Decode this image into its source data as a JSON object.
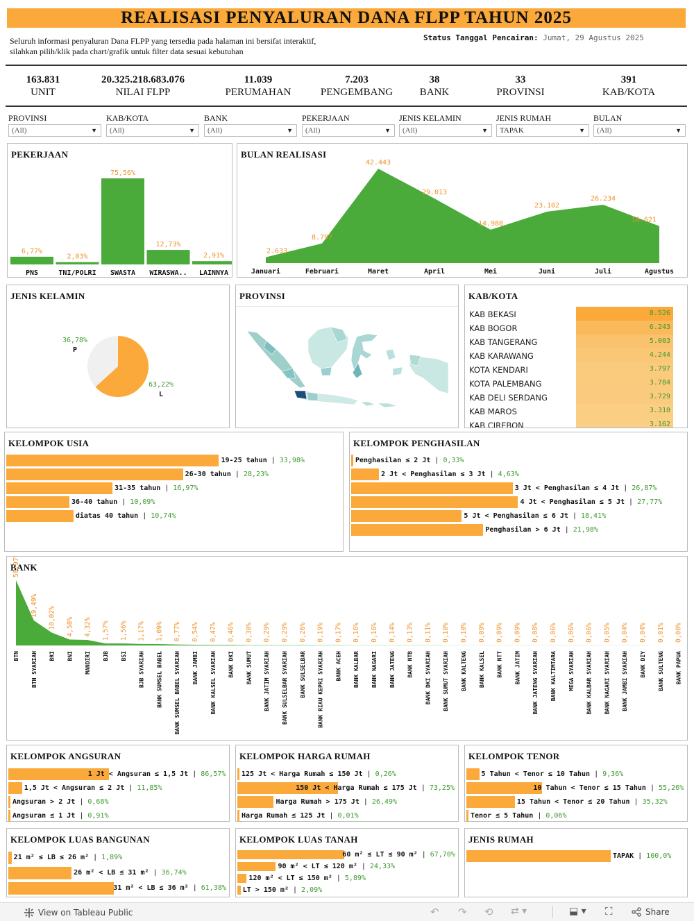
{
  "header": {
    "title": "REALISASI PENYALURAN DANA FLPP TAHUN 2025",
    "intro_line1": "Seluruh informasi penyaluran Dana FLPP yang tersedia pada halaman ini bersifat interaktif,",
    "intro_line2": "silahkan pilih/klik pada chart/grafik untuk filter data sesuai kebutuhan",
    "status_label": "Status Tanggal Pencairan:",
    "status_value": "Jumat, 29 Agustus 2025"
  },
  "kpis": [
    {
      "value": "163.831",
      "label": "UNIT"
    },
    {
      "value": "20.325.218.683.076",
      "label": "NILAI FLPP"
    },
    {
      "value": "11.039",
      "label": "PERUMAHAN"
    },
    {
      "value": "7.203",
      "label": "PENGEMBANG"
    },
    {
      "value": "38",
      "label": "BANK"
    },
    {
      "value": "33",
      "label": "PROVINSI"
    },
    {
      "value": "391",
      "label": "KAB/KOTA"
    }
  ],
  "filters": [
    {
      "label": "PROVINSI",
      "value": "(All)"
    },
    {
      "label": "KAB/KOTA",
      "value": "(All)"
    },
    {
      "label": "BANK",
      "value": "(All)"
    },
    {
      "label": "PEKERJAAN",
      "value": "(All)"
    },
    {
      "label": "JENIS KELAMIN",
      "value": "(All)"
    },
    {
      "label": "JENIS RUMAH",
      "value": "TAPAK"
    },
    {
      "label": "BULAN",
      "value": "(All)"
    }
  ],
  "colors": {
    "accent": "#FAA93A",
    "green": "#4aaa3a",
    "label_orange": "#F0922A",
    "label_green": "#3e9a2f"
  },
  "pekerjaan": {
    "title": "PEKERJAAN",
    "chart_data": {
      "type": "bar",
      "categories": [
        "PNS",
        "TNI/POLRI",
        "SWASTA",
        "WIRASWA..",
        "LAINNYA"
      ],
      "values": [
        6.77,
        2.03,
        75.56,
        12.73,
        2.91
      ],
      "labels": [
        "6,77%",
        "2,03%",
        "75,56%",
        "12,73%",
        "2,91%"
      ]
    }
  },
  "bulan": {
    "title": "BULAN REALISASI",
    "chart_data": {
      "type": "area",
      "categories": [
        "Januari",
        "Februari",
        "Maret",
        "April",
        "Mei",
        "Juni",
        "Juli",
        "Agustus"
      ],
      "values": [
        2633,
        8797,
        42443,
        29013,
        14988,
        23102,
        26234,
        16621
      ],
      "labels": [
        "2.633",
        "8.797",
        "42.443",
        "29.013",
        "14.988",
        "23.102",
        "26.234",
        "16.621"
      ]
    }
  },
  "jenis_kelamin": {
    "title": "JENIS KELAMIN",
    "chart_data": {
      "type": "pie",
      "categories": [
        "P",
        "L"
      ],
      "values": [
        36.78,
        63.22
      ],
      "labels": [
        "36,78%",
        "63,22%"
      ]
    }
  },
  "provinsi": {
    "title": "PROVINSI",
    "map_icon": "indonesia-map"
  },
  "kabkota": {
    "title": "KAB/KOTA",
    "chart_data": {
      "type": "table",
      "rows": [
        {
          "name": "KAB BEKASI",
          "value": 8526,
          "label": "8.526"
        },
        {
          "name": "KAB BOGOR",
          "value": 6243,
          "label": "6.243"
        },
        {
          "name": "KAB TANGERANG",
          "value": 5003,
          "label": "5.003"
        },
        {
          "name": "KAB KARAWANG",
          "value": 4244,
          "label": "4.244"
        },
        {
          "name": "KOTA KENDARI",
          "value": 3797,
          "label": "3.797"
        },
        {
          "name": "KOTA PALEMBANG",
          "value": 3784,
          "label": "3.784"
        },
        {
          "name": "KAB DELI SERDANG",
          "value": 3729,
          "label": "3.729"
        },
        {
          "name": "KAB MAROS",
          "value": 3310,
          "label": "3.310"
        },
        {
          "name": "KAB CIREBON",
          "value": 3162,
          "label": "3.162"
        }
      ]
    }
  },
  "usia": {
    "title": "KELOMPOK USIA",
    "chart_data": {
      "type": "bar",
      "categories": [
        "19-25 tahun",
        "26-30 tahun",
        "31-35 tahun",
        "36-40 tahun",
        "diatas 40 tahun"
      ],
      "values": [
        33.98,
        28.23,
        16.97,
        10.09,
        10.74
      ],
      "labels": [
        "33,98%",
        "28,23%",
        "16,97%",
        "10,09%",
        "10,74%"
      ]
    }
  },
  "penghasilan": {
    "title": "KELOMPOK PENGHASILAN",
    "chart_data": {
      "type": "bar",
      "categories": [
        "Penghasilan ≤ 2 Jt",
        "2 Jt < Penghasilan ≤ 3 Jt",
        "3 Jt < Penghasilan ≤ 4 Jt",
        "4 Jt < Penghasilan ≤ 5 Jt",
        "5 Jt < Penghasilan ≤ 6 Jt",
        "Penghasilan > 6 Jt"
      ],
      "values": [
        0.33,
        4.63,
        26.87,
        27.77,
        18.41,
        21.98
      ],
      "labels": [
        "0,33%",
        "4,63%",
        "26,87%",
        "27,77%",
        "18,41%",
        "21,98%"
      ]
    }
  },
  "bank": {
    "title": "BANK",
    "chart_data": {
      "type": "area",
      "categories": [
        "BTN",
        "BTN SYARIAH",
        "BRI",
        "BNI",
        "MANDIRI",
        "BJB",
        "BSI",
        "BJB SYARIAH",
        "BANK SUMSEL BABEL",
        "BANK SUMSEL BABEL SYARIAH",
        "BANK JAMBI",
        "BANK KALSEL SYARIAH",
        "BANK DKI",
        "BANK SUMUT",
        "BANK JATIM SYARIAH",
        "BANK SULSELBAR SYARIAH",
        "BANK SULSELBAR",
        "BANK RIAU KEPRI SYARIAH",
        "BANK ACEH",
        "BANK KALBAR",
        "BANK NAGARI",
        "BANK JATENG",
        "BANK NTB",
        "BANK DKI SYARIAH",
        "BANK SUMUT SYARIAH",
        "BANK KALTENG",
        "BANK KALSEL",
        "BANK NTT",
        "BANK JATIM",
        "BANK JATENG SYARIAH",
        "BANK KALTIMTARA",
        "MEGA SYARIAH",
        "BANK KALBAR SYARIAH",
        "BANK NAGARI SYARIAH",
        "BANK JAMBI SYARIAH",
        "BANK DIY",
        "BANK SULTENG",
        "BANK PAPUA"
      ],
      "values": [
        50.97,
        19.49,
        10.02,
        4.58,
        4.32,
        1.57,
        1.56,
        1.17,
        1.09,
        0.77,
        0.54,
        0.47,
        0.46,
        0.3,
        0.29,
        0.29,
        0.26,
        0.19,
        0.17,
        0.16,
        0.16,
        0.14,
        0.13,
        0.11,
        0.1,
        0.1,
        0.09,
        0.09,
        0.09,
        0.08,
        0.06,
        0.06,
        0.06,
        0.05,
        0.04,
        0.04,
        0.01,
        0.0
      ],
      "labels": [
        "50,97%",
        "19,49%",
        "10,02%",
        "4,58%",
        "4,32%",
        "1,57%",
        "1,56%",
        "1,17%",
        "1,09%",
        "0,77%",
        "0,54%",
        "0,47%",
        "0,46%",
        "0,30%",
        "0,29%",
        "0,29%",
        "0,26%",
        "0,19%",
        "0,17%",
        "0,16%",
        "0,16%",
        "0,14%",
        "0,13%",
        "0,11%",
        "0,10%",
        "0,10%",
        "0,09%",
        "0,09%",
        "0,09%",
        "0,08%",
        "0,06%",
        "0,06%",
        "0,06%",
        "0,05%",
        "0,04%",
        "0,04%",
        "0,01%",
        "0,00%"
      ]
    }
  },
  "angsuran": {
    "title": "KELOMPOK ANGSURAN",
    "chart_data": {
      "type": "bar",
      "categories": [
        "1 Jt < Angsuran ≤ 1,5 Jt",
        "1,5 Jt < Angsuran ≤ 2 Jt",
        "Angsuran > 2 Jt",
        "Angsuran ≤ 1 Jt"
      ],
      "values": [
        86.57,
        11.85,
        0.68,
        0.91
      ],
      "labels": [
        "86,57%",
        "11,85%",
        "0,68%",
        "0,91%"
      ]
    }
  },
  "harga": {
    "title": "KELOMPOK HARGA RUMAH",
    "chart_data": {
      "type": "bar",
      "categories": [
        "125 Jt < Harga Rumah ≤ 150 Jt",
        "150 Jt < Harga Rumah ≤ 175 Jt",
        "Harga Rumah > 175 Jt",
        "Harga Rumah ≤ 125 Jt"
      ],
      "values": [
        0.26,
        73.25,
        26.49,
        0.01
      ],
      "labels": [
        "0,26%",
        "73,25%",
        "26,49%",
        "0,01%"
      ]
    }
  },
  "tenor": {
    "title": "KELOMPOK TENOR",
    "chart_data": {
      "type": "bar",
      "categories": [
        "5 Tahun < Tenor ≤ 10 Tahun",
        "10 Tahun < Tenor ≤ 15 Tahun",
        "15 Tahun < Tenor ≤ 20 Tahun",
        "Tenor ≤ 5 Tahun"
      ],
      "values": [
        9.36,
        55.26,
        35.32,
        0.06
      ],
      "labels": [
        "9,36%",
        "55,26%",
        "35,32%",
        "0,06%"
      ]
    }
  },
  "luas_bangunan": {
    "title": "KELOMPOK LUAS BANGUNAN",
    "chart_data": {
      "type": "bar",
      "categories": [
        "21 m² ≤ LB ≤ 26 m²",
        "26 m² < LB ≤ 31 m²",
        "31 m² < LB ≤ 36 m²"
      ],
      "values": [
        1.89,
        36.74,
        61.38
      ],
      "labels": [
        "1,89%",
        "36,74%",
        "61,38%"
      ]
    }
  },
  "luas_tanah": {
    "title": "KELOMPOK LUAS TANAH",
    "chart_data": {
      "type": "bar",
      "categories": [
        "60 m² ≤ LT ≤ 90 m²",
        "90 m² < LT ≤ 120 m²",
        "120 m² < LT ≤ 150 m²",
        "LT > 150 m²"
      ],
      "values": [
        67.7,
        24.33,
        5.89,
        2.09
      ],
      "labels": [
        "67,70%",
        "24,33%",
        "5,89%",
        "2,09%"
      ]
    }
  },
  "jenis_rumah": {
    "title": "JENIS RUMAH",
    "chart_data": {
      "type": "bar",
      "categories": [
        "TAPAK"
      ],
      "values": [
        100.0
      ],
      "labels": [
        "100,0%"
      ]
    }
  },
  "footer": {
    "view_label": "View on Tableau Public",
    "share_label": "Share"
  }
}
